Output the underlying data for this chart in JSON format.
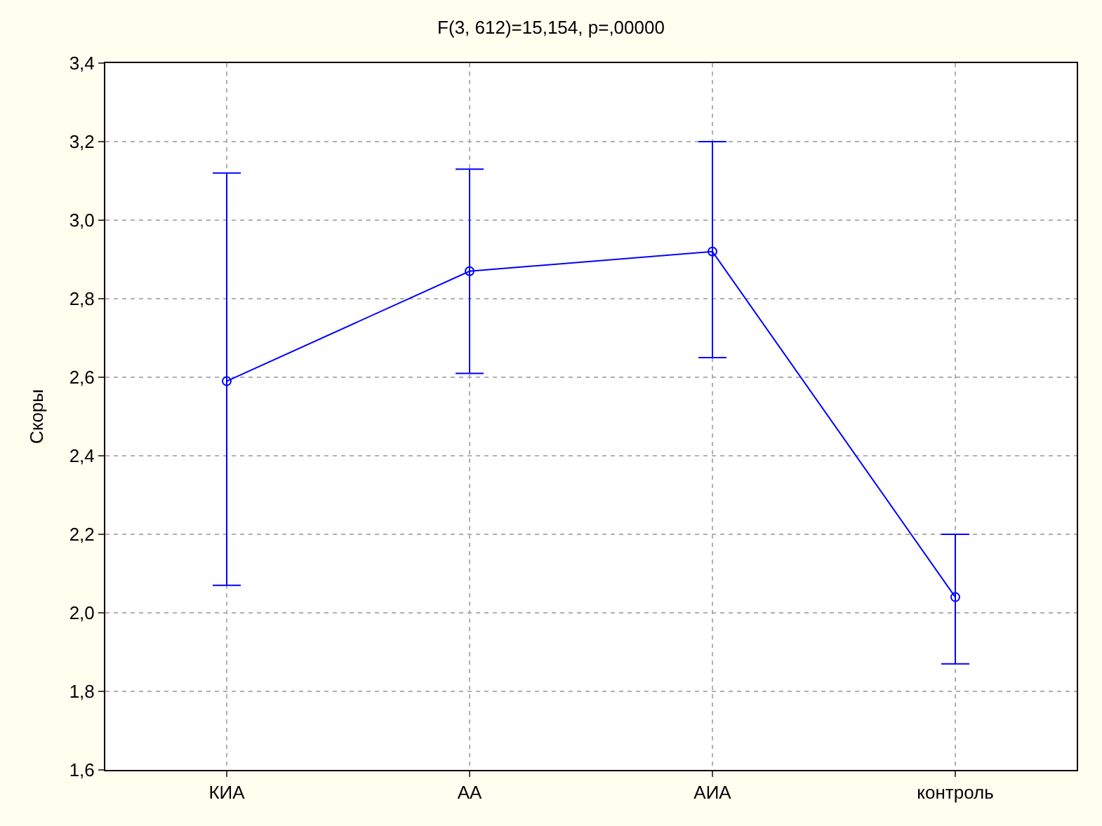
{
  "chart_data": {
    "type": "line",
    "title": "F(3, 612)=15,154, p=,00000",
    "ylabel": "Скоры",
    "categories": [
      "КИА",
      "АА",
      "АИА",
      "контроль"
    ],
    "series": [
      {
        "color": "#0000ff",
        "values": [
          2.59,
          2.87,
          2.92,
          2.04
        ],
        "errors": [
          [
            2.07,
            3.12
          ],
          [
            2.61,
            3.13
          ],
          [
            2.65,
            3.2
          ],
          [
            1.87,
            2.2
          ]
        ]
      }
    ],
    "ylim": [
      1.6,
      3.4
    ],
    "yticks": [
      {
        "value": 1.6,
        "label": "1,6"
      },
      {
        "value": 1.8,
        "label": "1,8"
      },
      {
        "value": 2.0,
        "label": "2,0"
      },
      {
        "value": 2.2,
        "label": "2,2"
      },
      {
        "value": 2.4,
        "label": "2,4"
      },
      {
        "value": 2.6,
        "label": "2,6"
      },
      {
        "value": 2.8,
        "label": "2,8"
      },
      {
        "value": 3.0,
        "label": "3,0"
      },
      {
        "value": 3.2,
        "label": "3,2"
      },
      {
        "value": 3.4,
        "label": "3,4"
      }
    ],
    "grid": true,
    "legend": false,
    "marker": "circle",
    "line_style": "solid"
  }
}
